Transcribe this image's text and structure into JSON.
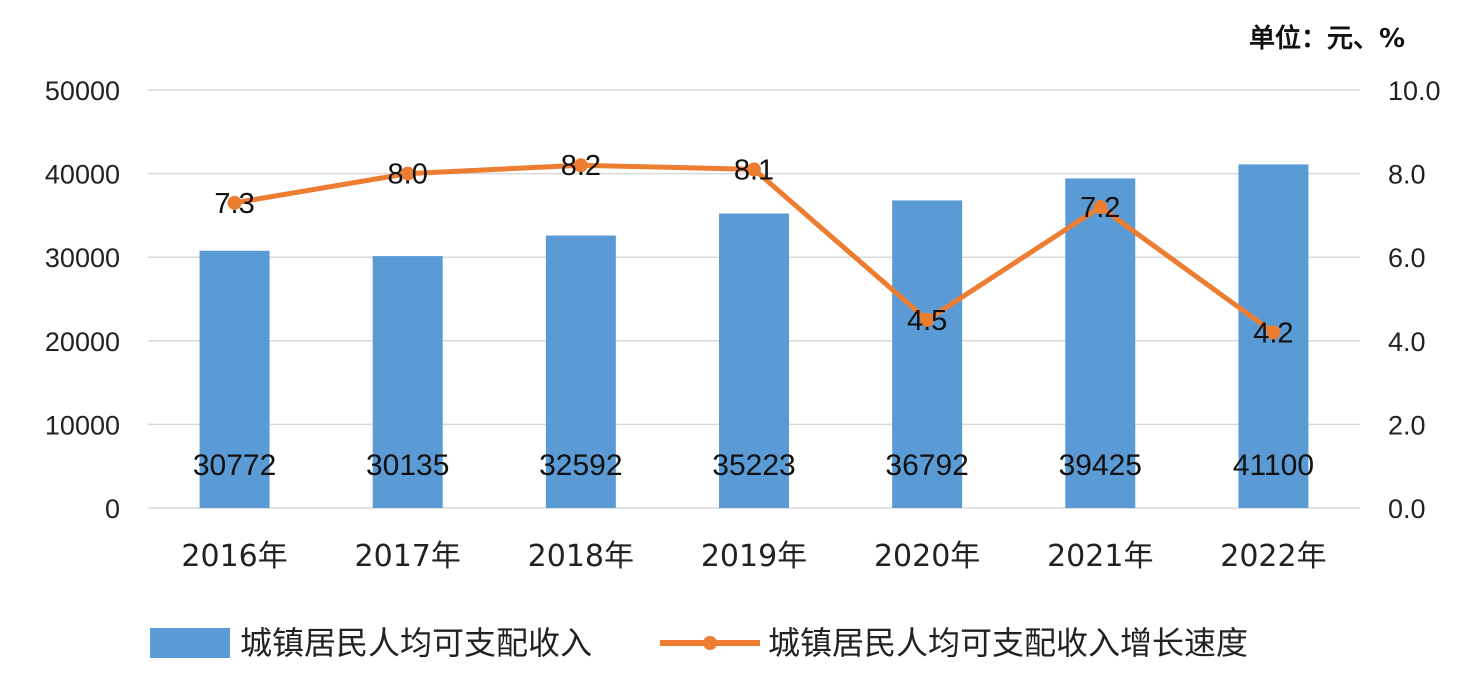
{
  "unit_label": "单位：元、%",
  "chart_data": {
    "type": "bar",
    "categories": [
      "2016年",
      "2017年",
      "2018年",
      "2019年",
      "2020年",
      "2021年",
      "2022年"
    ],
    "series": [
      {
        "name": "城镇居民人均可支配收入",
        "type": "bar",
        "axis": "left",
        "values": [
          30772,
          30135,
          32592,
          35223,
          36792,
          39425,
          41100
        ],
        "color": "#5b9bd5"
      },
      {
        "name": "城镇居民人均可支配收入增长速度",
        "type": "line",
        "axis": "right",
        "values": [
          7.3,
          8.0,
          8.2,
          8.1,
          4.5,
          7.2,
          4.2
        ],
        "color": "#ed7d31"
      }
    ],
    "y_left": {
      "min": 0,
      "max": 50000,
      "ticks": [
        "0",
        "10000",
        "20000",
        "30000",
        "40000",
        "50000"
      ]
    },
    "y_right": {
      "min": 0,
      "max": 10,
      "ticks": [
        "0.0",
        "2.0",
        "4.0",
        "6.0",
        "8.0",
        "10.0"
      ]
    },
    "grid": true,
    "legend_position": "bottom"
  }
}
